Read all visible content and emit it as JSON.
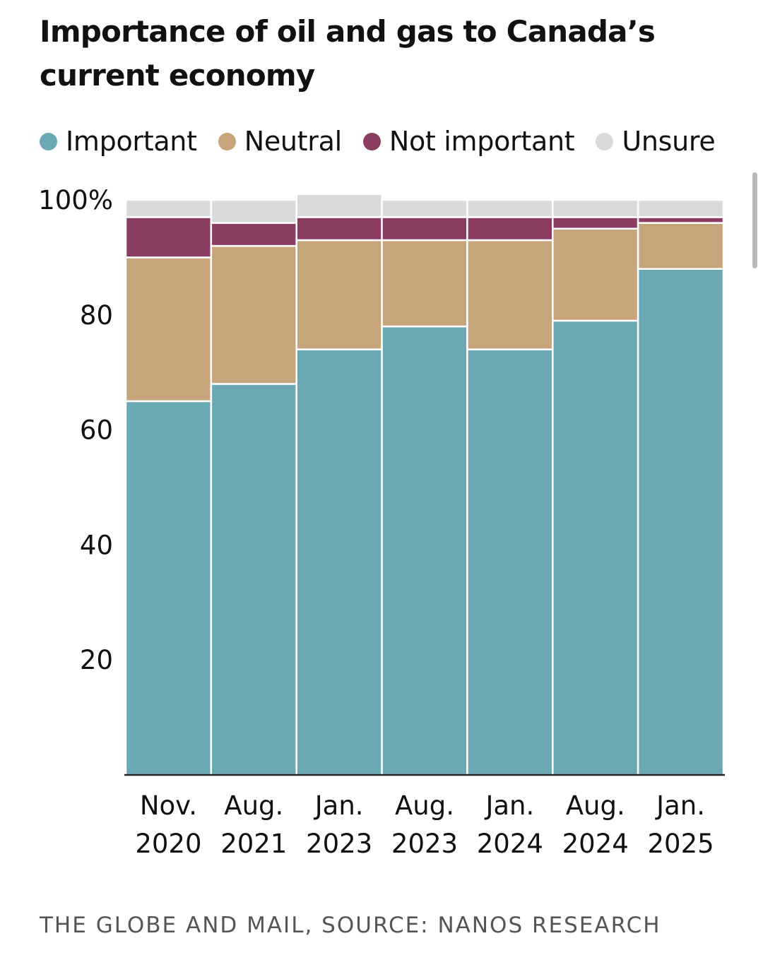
{
  "header": {
    "title": "Importance of oil and gas to Canada’s current economy"
  },
  "legend": [
    {
      "label": "Important",
      "color": "#6aa9b4"
    },
    {
      "label": "Neutral",
      "color": "#c7a57b"
    },
    {
      "label": "Not important",
      "color": "#8b3c61"
    },
    {
      "label": "Unsure",
      "color": "#d9dadc"
    }
  ],
  "chart_data": {
    "type": "bar",
    "stacked": true,
    "categories": [
      [
        "Nov.",
        "2020"
      ],
      [
        "Aug.",
        "2021"
      ],
      [
        "Jan.",
        "2023"
      ],
      [
        "Aug.",
        "2023"
      ],
      [
        "Jan.",
        "2024"
      ],
      [
        "Aug.",
        "2024"
      ],
      [
        "Jan.",
        "2025"
      ]
    ],
    "series": [
      {
        "name": "Important",
        "color": "#6aa9b4",
        "values": [
          65,
          68,
          74,
          78,
          74,
          79,
          88
        ]
      },
      {
        "name": "Neutral",
        "color": "#c7a57b",
        "values": [
          25,
          24,
          19,
          15,
          19,
          16,
          8
        ]
      },
      {
        "name": "Not important",
        "color": "#8b3c61",
        "values": [
          7,
          4,
          4,
          4,
          4,
          2,
          1
        ]
      },
      {
        "name": "Unsure",
        "color": "#d9dadc",
        "values": [
          3,
          4,
          4,
          3,
          3,
          3,
          3
        ]
      }
    ],
    "yticks": [
      {
        "value": 100,
        "label": "100%"
      },
      {
        "value": 80,
        "label": "80"
      },
      {
        "value": 60,
        "label": "60"
      },
      {
        "value": 40,
        "label": "40"
      },
      {
        "value": 20,
        "label": "20"
      }
    ],
    "ylim": [
      0,
      100
    ],
    "grid": false,
    "legend_position": "top"
  },
  "footer": {
    "source": "THE GLOBE AND MAIL, SOURCE: NANOS RESEARCH"
  }
}
